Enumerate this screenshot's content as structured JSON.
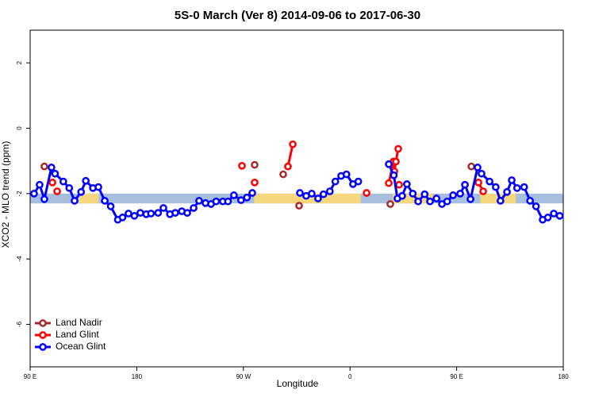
{
  "chart_data": {
    "type": "line",
    "title": "5S-0 March (Ver 8)   2014-09-06 to 2017-06-30",
    "xlabel": "Longitude",
    "ylabel": "XCO2 - MLO trend (ppm)",
    "xlim": [
      90,
      540
    ],
    "ylim": [
      -7.3,
      3
    ],
    "xticks": [
      {
        "value": 90,
        "label": "90 E"
      },
      180,
      {
        "value": 270,
        "label": "90 W"
      },
      {
        "value": 360,
        "label": "0"
      },
      {
        "value": 450,
        "label": "90 E"
      },
      {
        "value": 540,
        "label": "180"
      }
    ],
    "yticks": [
      -6,
      -4,
      -2,
      0,
      2
    ],
    "band": {
      "ylim": [
        -2.3,
        -2.0
      ],
      "color": "#a7bedf",
      "land_color": "#f5d77e",
      "land_spans": [
        [
          131,
          148
        ],
        [
          279,
          369
        ],
        [
          396,
          430
        ],
        [
          470,
          500
        ]
      ]
    },
    "legend": "bottom-left",
    "series": [
      {
        "name": "Land Nadir",
        "color": "#a52a2a",
        "x": [
          102,
          null,
          279.5,
          null,
          303.6,
          null,
          317,
          null,
          394,
          null,
          462.4
        ],
        "values": [
          -1.17,
          null,
          -1.12,
          null,
          -1.41,
          null,
          -2.37,
          null,
          -2.32,
          null,
          -1.17
        ]
      },
      {
        "name": "Land Glint",
        "color": "#ff0000",
        "x": [
          108.8,
          null,
          112.8,
          null,
          268.8,
          null,
          279.5,
          null,
          307.6,
          311.7,
          null,
          374,
          null,
          392.7,
          396.7,
          397.4,
          398.7,
          400.7,
          null,
          401.4,
          null,
          468.4,
          472.4
        ],
        "values": [
          -1.66,
          null,
          -1.93,
          null,
          -1.15,
          null,
          -1.66,
          null,
          -1.17,
          -0.49,
          null,
          -1.98,
          null,
          -1.68,
          -1.02,
          -1.32,
          -1.02,
          -0.63,
          null,
          -1.73,
          null,
          -1.66,
          -1.93
        ]
      },
      {
        "name": "Ocean Glint",
        "color": "#0000ff",
        "x": [
          93.3,
          98,
          102,
          108,
          111,
          118,
          123,
          127.5,
          133,
          137,
          143,
          147.6,
          153,
          158,
          164,
          168,
          173,
          178,
          183,
          188,
          192,
          198,
          202.5,
          208,
          212.5,
          218,
          222.6,
          228,
          232.6,
          238,
          242.7,
          247,
          252.7,
          257,
          262,
          268,
          273,
          277.5,
          null,
          317.7,
          323,
          327.7,
          333,
          337.6,
          343,
          347.6,
          352.5,
          357,
          362.5,
          367,
          null,
          392.7,
          397,
          400,
          404,
          408,
          413,
          417.5,
          423,
          427.5,
          433,
          437.6,
          442,
          447,
          453,
          457,
          461.7,
          467.7,
          471,
          477.8,
          483,
          487,
          492.5,
          496.5,
          501,
          507,
          512,
          517,
          522.6,
          527,
          532,
          537
        ],
        "values": [
          -2.0,
          -1.73,
          -2.17,
          -1.2,
          -1.39,
          -1.63,
          -1.83,
          -2.22,
          -1.95,
          -1.61,
          -1.83,
          -1.8,
          -2.22,
          -2.39,
          -2.8,
          -2.73,
          -2.61,
          -2.68,
          -2.59,
          -2.63,
          -2.61,
          -2.59,
          -2.44,
          -2.63,
          -2.59,
          -2.54,
          -2.59,
          -2.44,
          -2.22,
          -2.29,
          -2.32,
          -2.24,
          -2.24,
          -2.24,
          -2.05,
          -2.2,
          -2.12,
          -1.98,
          null,
          -1.98,
          -2.07,
          -2.0,
          -2.15,
          -2.02,
          -1.93,
          -1.63,
          -1.46,
          -1.41,
          -1.71,
          -1.63,
          null,
          -1.1,
          -1.44,
          -2.15,
          -2.07,
          -1.71,
          -2.0,
          -2.24,
          -2.02,
          -2.24,
          -2.15,
          -2.32,
          -2.24,
          -2.05,
          -2.0,
          -1.73,
          -2.17,
          -1.2,
          -1.39,
          -1.63,
          -1.8,
          -2.22,
          -1.95,
          -1.59,
          -1.83,
          -1.8,
          -2.22,
          -2.39,
          -2.8,
          -2.73,
          -2.61,
          -2.68
        ]
      }
    ]
  }
}
